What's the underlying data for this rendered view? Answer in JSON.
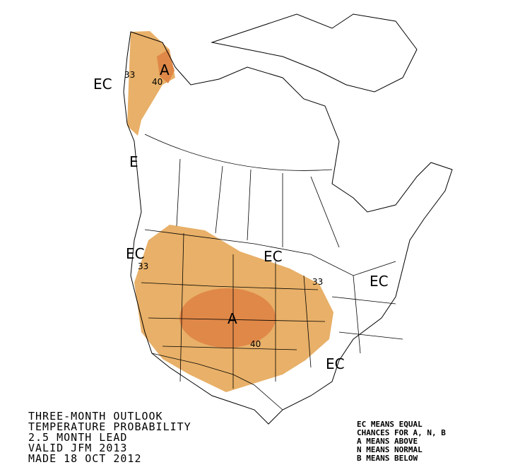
{
  "map_labels": [
    "EC",
    "33",
    "A",
    "40",
    "E",
    "EC",
    "33",
    "EC",
    "33",
    "EC",
    "A",
    "40",
    "EC"
  ],
  "title_lines": [
    "THREE-MONTH OUTLOOK",
    "TEMPERATURE PROBABILITY",
    "2.5 MONTH LEAD",
    "VALID JFM 2013",
    "MADE 18 OCT 2012"
  ],
  "legend_lines": [
    "EC MEANS EQUAL",
    "CHANCES FOR A, N, B",
    "A MEANS ABOVE",
    "N MEANS NORMAL",
    "B MEANS BELOW"
  ]
}
